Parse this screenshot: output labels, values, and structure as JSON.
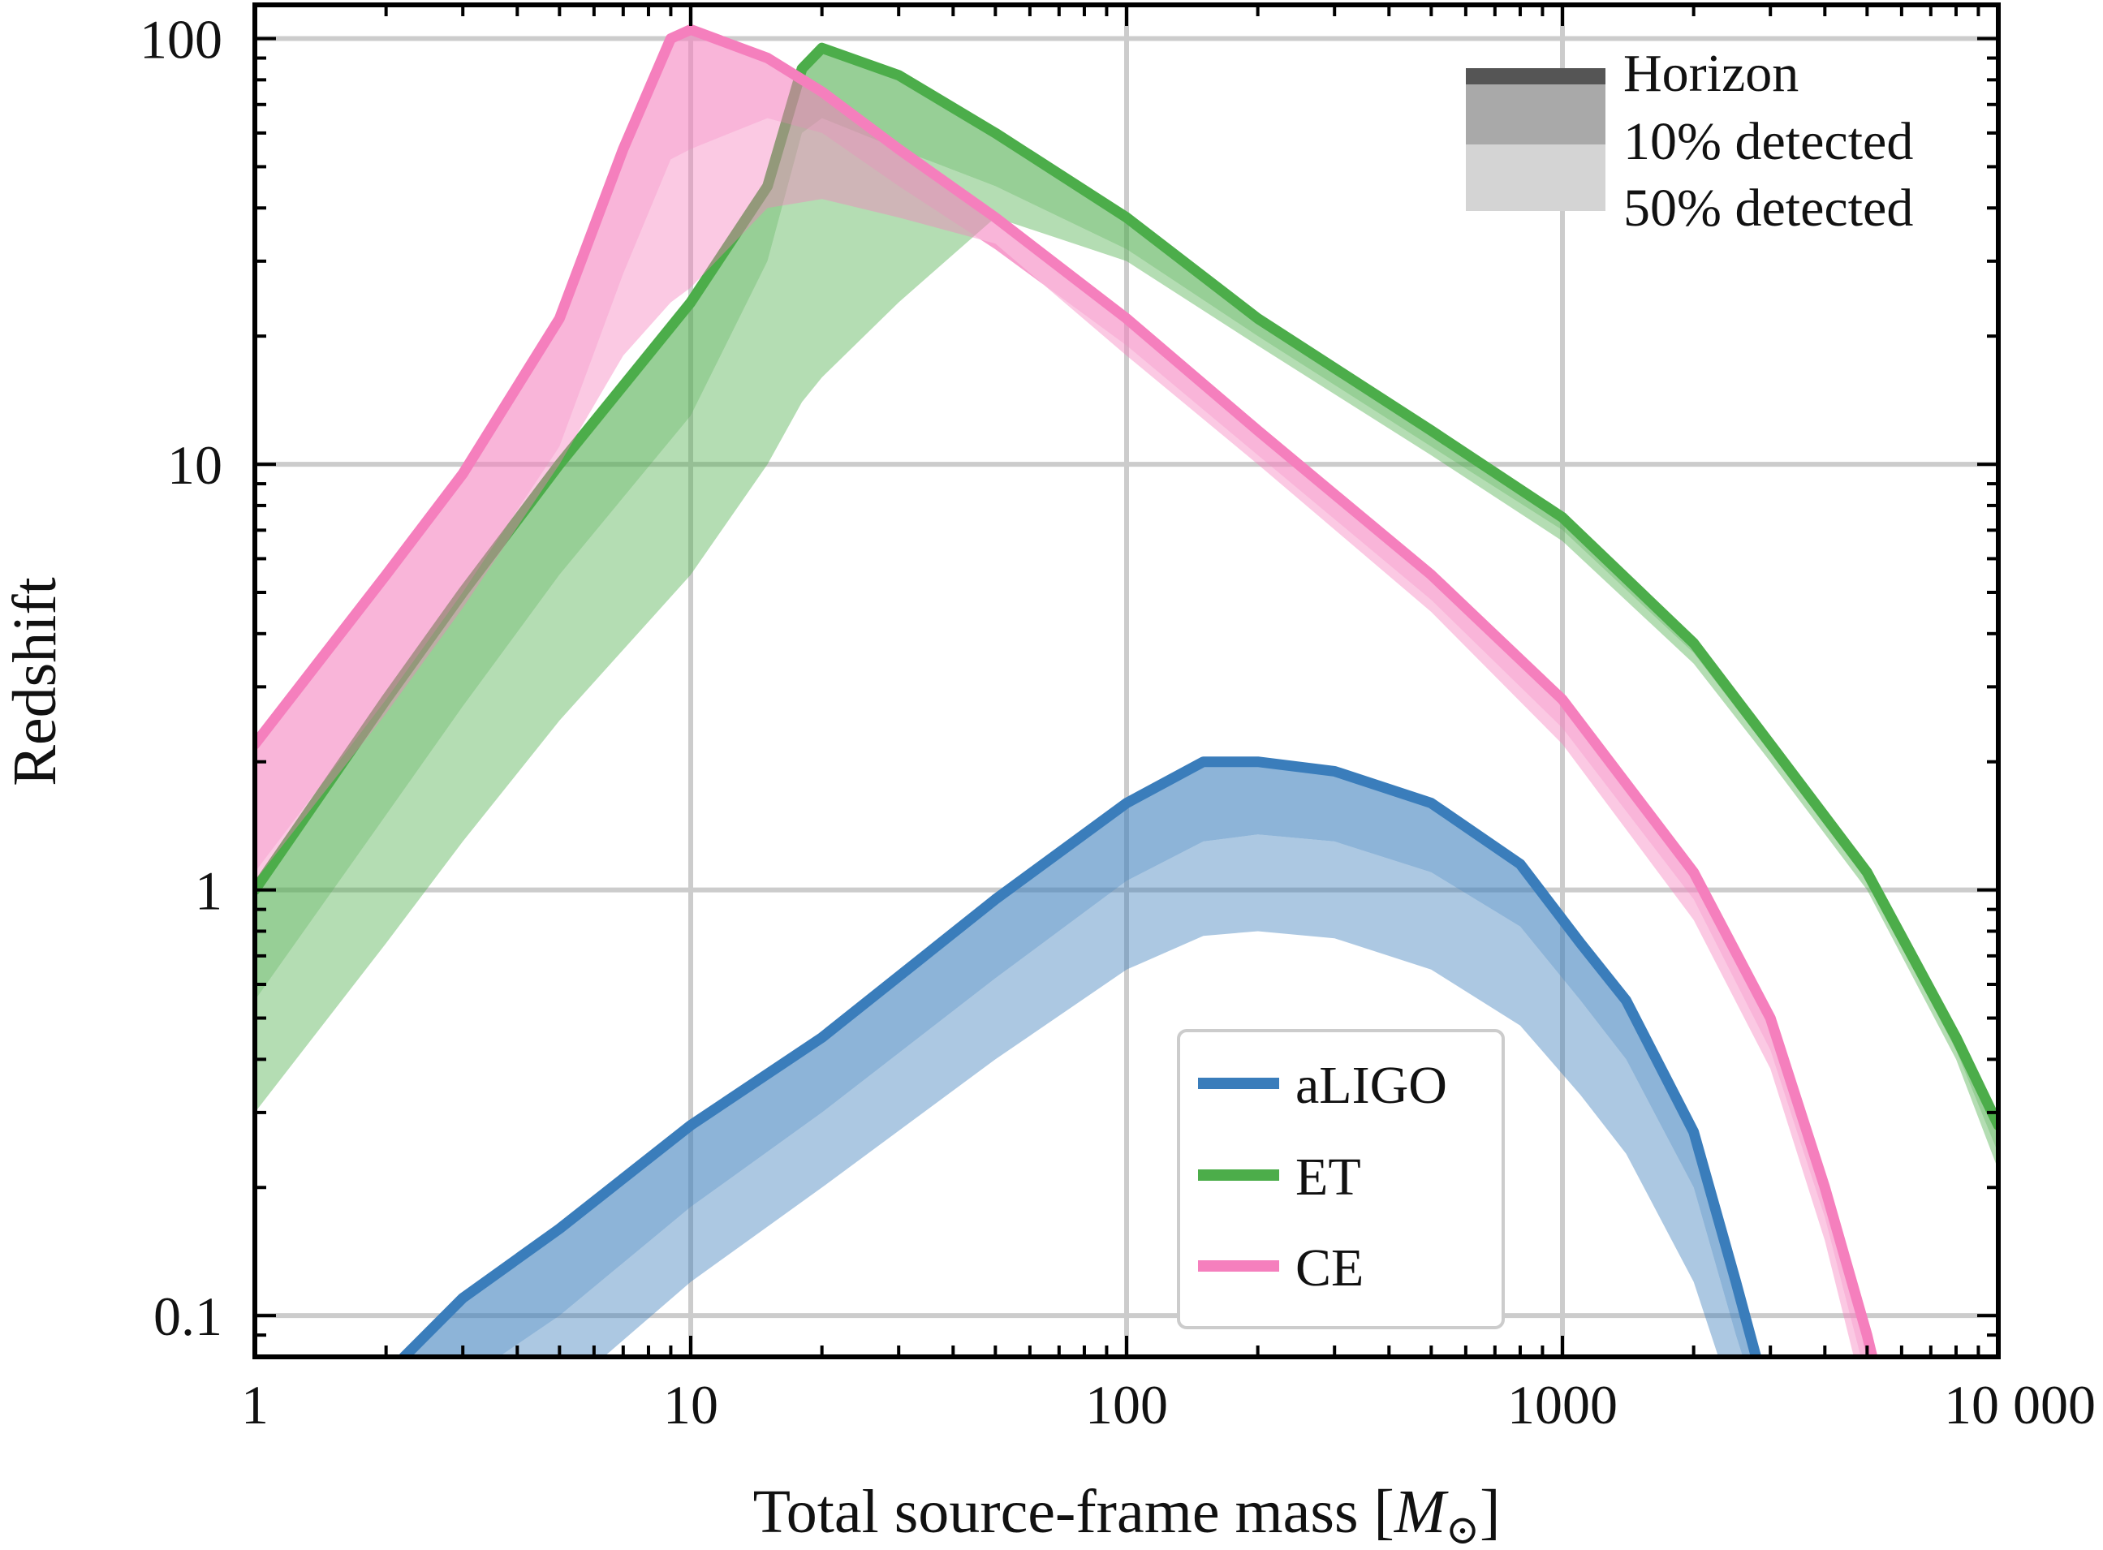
{
  "chart_data": {
    "type": "area",
    "xlabel": "Total source-frame mass [M⊙]",
    "ylabel": "Redshift",
    "xscale": "log",
    "yscale": "log",
    "xlim": [
      1,
      10000
    ],
    "ylim": [
      0.08,
      120
    ],
    "grid": true,
    "x_ticks": [
      1,
      10,
      100,
      1000,
      10000
    ],
    "x_tick_labels": [
      "1",
      "10",
      "100",
      "1000",
      "10 000"
    ],
    "y_ticks": [
      0.1,
      1,
      10,
      100
    ],
    "y_tick_labels": [
      "0.1",
      "1",
      "10",
      "100"
    ],
    "colors": {
      "aLIGO": "#3a7dbb",
      "ET": "#4cad4a",
      "CE": "#f57fbd"
    },
    "style_legend": {
      "placement": "top-right",
      "entries": [
        "Horizon",
        "10% detected",
        "50% detected"
      ]
    },
    "legend": {
      "placement": "lower-center",
      "entries": [
        "aLIGO",
        "ET",
        "CE"
      ]
    },
    "series": [
      {
        "name": "aLIGO",
        "color": "#3a7dbb",
        "x": [
          2.2,
          3,
          5,
          10,
          20,
          50,
          100,
          150,
          200,
          300,
          500,
          800,
          1100,
          1400,
          2000,
          2500,
          3000
        ],
        "horizon": [
          0.08,
          0.11,
          0.16,
          0.28,
          0.45,
          0.95,
          1.6,
          2.0,
          2.0,
          1.9,
          1.6,
          1.15,
          0.75,
          0.55,
          0.27,
          0.12,
          0.06
        ],
        "detected_10": [
          0.05,
          0.07,
          0.1,
          0.18,
          0.3,
          0.62,
          1.05,
          1.3,
          1.35,
          1.3,
          1.1,
          0.82,
          0.55,
          0.4,
          0.2,
          0.09,
          0.05
        ],
        "detected_50": [
          0.03,
          0.045,
          0.065,
          0.12,
          0.2,
          0.4,
          0.65,
          0.78,
          0.8,
          0.77,
          0.65,
          0.48,
          0.33,
          0.24,
          0.12,
          0.06,
          0.03
        ]
      },
      {
        "name": "ET",
        "color": "#4cad4a",
        "x": [
          1,
          2,
          3,
          5,
          10,
          15,
          18,
          20,
          30,
          50,
          100,
          200,
          500,
          1000,
          2000,
          3000,
          5000,
          8000,
          10000
        ],
        "horizon": [
          1.0,
          2.8,
          5.0,
          10,
          24,
          45,
          85,
          95,
          82,
          60,
          38,
          22,
          12,
          7.5,
          3.8,
          2.2,
          1.1,
          0.45,
          0.28
        ],
        "detected_10": [
          0.55,
          1.5,
          2.7,
          5.5,
          13,
          30,
          60,
          65,
          55,
          45,
          32,
          20,
          11,
          7.0,
          3.6,
          2.1,
          1.05,
          0.42,
          0.24
        ],
        "detected_50": [
          0.3,
          0.75,
          1.3,
          2.5,
          5.5,
          10,
          14,
          16,
          24,
          38,
          30,
          19,
          10.5,
          6.6,
          3.4,
          2.0,
          1.0,
          0.4,
          0.22
        ]
      },
      {
        "name": "CE",
        "color": "#f57fbd",
        "x": [
          1,
          2,
          3,
          5,
          7,
          9,
          10,
          15,
          20,
          30,
          50,
          100,
          200,
          500,
          1000,
          2000,
          3000,
          4000,
          5000,
          5500
        ],
        "horizon": [
          2.2,
          5.5,
          9.5,
          22,
          55,
          100,
          105,
          90,
          75,
          55,
          38,
          22,
          12,
          5.5,
          2.8,
          1.1,
          0.5,
          0.2,
          0.09,
          0.06
        ],
        "detected_10": [
          1.1,
          2.8,
          5.0,
          11,
          28,
          52,
          55,
          65,
          60,
          45,
          32,
          19,
          10.5,
          4.8,
          2.4,
          0.95,
          0.42,
          0.17,
          0.07,
          0.05
        ],
        "detected_50": [
          1.05,
          2.6,
          4.6,
          10,
          18,
          24,
          26,
          40,
          42,
          38,
          33,
          18,
          10,
          4.5,
          2.2,
          0.85,
          0.38,
          0.15,
          0.06,
          0.04
        ]
      }
    ]
  }
}
